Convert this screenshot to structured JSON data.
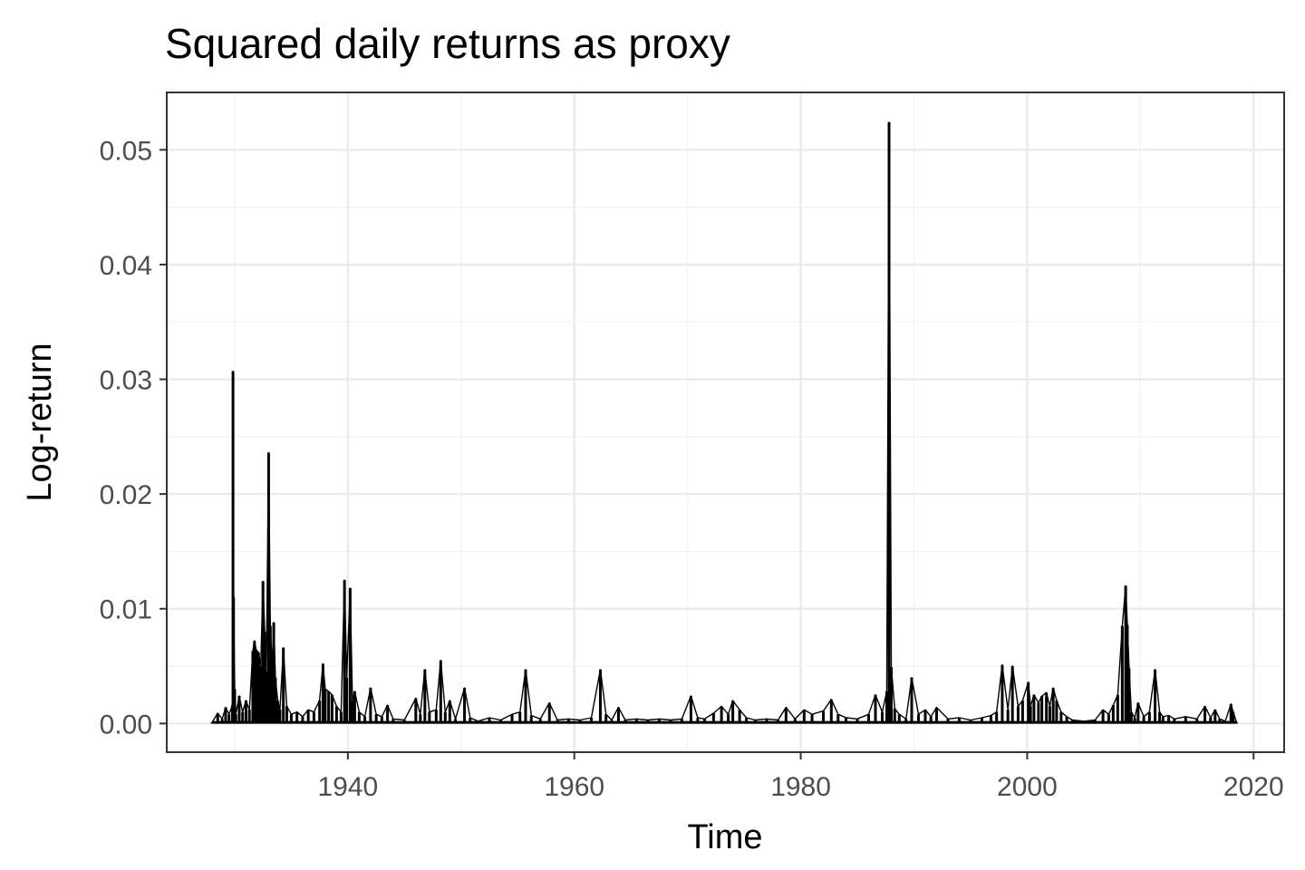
{
  "chart_data": {
    "type": "line",
    "title": "Squared daily returns as proxy",
    "xlabel": "Time",
    "ylabel": "Log-return",
    "xlim": [
      1924.0,
      2022.7
    ],
    "ylim": [
      -0.0025,
      0.055
    ],
    "x_ticks": [
      1940,
      1960,
      1980,
      2000,
      2020
    ],
    "y_ticks": [
      0.0,
      0.01,
      0.02,
      0.03,
      0.04,
      0.05
    ],
    "y_tick_labels": [
      "0.00",
      "0.01",
      "0.02",
      "0.03",
      "0.04",
      "0.05"
    ],
    "x_minor_ticks": [
      1930,
      1950,
      1970,
      1990,
      2010
    ],
    "y_minor_ticks": [
      0.005,
      0.015,
      0.025,
      0.035,
      0.045
    ],
    "grid": true,
    "legend": "none",
    "series": [
      {
        "color": "#000000",
        "x": [
          1928.0,
          1928.5,
          1928.9,
          1929.2,
          1929.5,
          1929.8,
          1929.85,
          1929.9,
          1930.0,
          1930.1,
          1930.4,
          1930.7,
          1931.0,
          1931.3,
          1931.6,
          1931.75,
          1931.9,
          1932.1,
          1932.3,
          1932.5,
          1932.65,
          1932.8,
          1933.0,
          1933.15,
          1933.3,
          1933.45,
          1933.6,
          1933.8,
          1934.0,
          1934.3,
          1934.6,
          1935.0,
          1935.5,
          1936.0,
          1936.5,
          1937.0,
          1937.5,
          1937.8,
          1938.0,
          1938.3,
          1938.6,
          1939.0,
          1939.4,
          1939.7,
          1939.9,
          1940.2,
          1940.4,
          1940.6,
          1941.0,
          1941.5,
          1942.0,
          1942.5,
          1943.0,
          1943.5,
          1944.0,
          1945.0,
          1946.0,
          1946.4,
          1946.8,
          1947.2,
          1947.8,
          1948.2,
          1948.6,
          1949.0,
          1949.5,
          1950.3,
          1950.8,
          1951.5,
          1952.5,
          1953.5,
          1954.5,
          1955.2,
          1955.7,
          1956.2,
          1957.0,
          1957.8,
          1958.5,
          1959.5,
          1960.5,
          1961.5,
          1962.3,
          1962.8,
          1963.3,
          1963.9,
          1964.5,
          1965.5,
          1966.5,
          1967.5,
          1968.5,
          1969.5,
          1970.3,
          1970.9,
          1971.5,
          1972.3,
          1973.0,
          1973.6,
          1974.0,
          1974.6,
          1975.2,
          1976.0,
          1977.0,
          1978.0,
          1978.7,
          1979.5,
          1980.3,
          1981.0,
          1982.0,
          1982.7,
          1983.3,
          1984.0,
          1985.0,
          1986.0,
          1986.6,
          1987.2,
          1987.6,
          1987.8,
          1988.0,
          1988.3,
          1988.7,
          1989.3,
          1989.8,
          1990.4,
          1991.0,
          1991.5,
          1992.0,
          1993.0,
          1994.0,
          1995.0,
          1996.0,
          1996.8,
          1997.3,
          1997.8,
          1998.3,
          1998.7,
          1999.2,
          1999.6,
          2000.1,
          2000.3,
          2000.6,
          2001.0,
          2001.3,
          2001.7,
          2002.0,
          2002.3,
          2002.6,
          2003.0,
          2003.5,
          2004.0,
          2005.0,
          2006.0,
          2006.7,
          2007.2,
          2007.6,
          2008.0,
          2008.4,
          2008.7,
          2008.85,
          2009.0,
          2009.2,
          2009.5,
          2009.8,
          2010.3,
          2010.8,
          2011.3,
          2011.7,
          2012.0,
          2012.5,
          2013.0,
          2014.0,
          2015.0,
          2015.7,
          2016.2,
          2016.6,
          2017.0,
          2017.5,
          2018.0,
          2018.2,
          2018.5
        ],
        "y": [
          0.0001,
          0.0009,
          0.0004,
          0.0014,
          0.0008,
          0.0016,
          0.0307,
          0.011,
          0.003,
          0.0008,
          0.0024,
          0.001,
          0.002,
          0.0012,
          0.0063,
          0.0072,
          0.0064,
          0.0062,
          0.005,
          0.0124,
          0.008,
          0.0045,
          0.0236,
          0.0085,
          0.005,
          0.0088,
          0.004,
          0.002,
          0.0012,
          0.0066,
          0.0015,
          0.0008,
          0.001,
          0.0006,
          0.0012,
          0.001,
          0.002,
          0.0052,
          0.003,
          0.0028,
          0.0025,
          0.0015,
          0.001,
          0.0125,
          0.004,
          0.0118,
          0.002,
          0.0028,
          0.001,
          0.0006,
          0.0031,
          0.0008,
          0.0006,
          0.0016,
          0.0004,
          0.0003,
          0.0022,
          0.0008,
          0.0047,
          0.001,
          0.0012,
          0.0055,
          0.001,
          0.002,
          0.0004,
          0.0031,
          0.0005,
          0.0002,
          0.0005,
          0.0003,
          0.0008,
          0.001,
          0.0047,
          0.0007,
          0.0004,
          0.0018,
          0.0003,
          0.0004,
          0.0003,
          0.0005,
          0.0047,
          0.0008,
          0.0003,
          0.0014,
          0.0003,
          0.0004,
          0.0003,
          0.0004,
          0.0003,
          0.0004,
          0.0024,
          0.0005,
          0.0004,
          0.0009,
          0.0015,
          0.0008,
          0.002,
          0.0012,
          0.0005,
          0.0003,
          0.0004,
          0.0003,
          0.0014,
          0.0004,
          0.0012,
          0.0008,
          0.0011,
          0.0021,
          0.0008,
          0.0005,
          0.0004,
          0.0008,
          0.0025,
          0.001,
          0.0028,
          0.0524,
          0.0049,
          0.0013,
          0.0008,
          0.0004,
          0.004,
          0.0008,
          0.0012,
          0.0006,
          0.0014,
          0.0004,
          0.0005,
          0.0003,
          0.0005,
          0.0007,
          0.001,
          0.0051,
          0.0012,
          0.005,
          0.0015,
          0.002,
          0.0036,
          0.0015,
          0.0025,
          0.0018,
          0.0024,
          0.0027,
          0.0015,
          0.0031,
          0.002,
          0.001,
          0.0006,
          0.0003,
          0.0002,
          0.0003,
          0.0012,
          0.0008,
          0.0016,
          0.0025,
          0.0085,
          0.012,
          0.0086,
          0.0048,
          0.001,
          0.0005,
          0.0018,
          0.0006,
          0.001,
          0.0047,
          0.001,
          0.0006,
          0.0007,
          0.0004,
          0.0006,
          0.0004,
          0.0015,
          0.0005,
          0.0012,
          0.0004,
          0.0002,
          0.0017,
          0.001,
          0.0001
        ]
      }
    ]
  }
}
